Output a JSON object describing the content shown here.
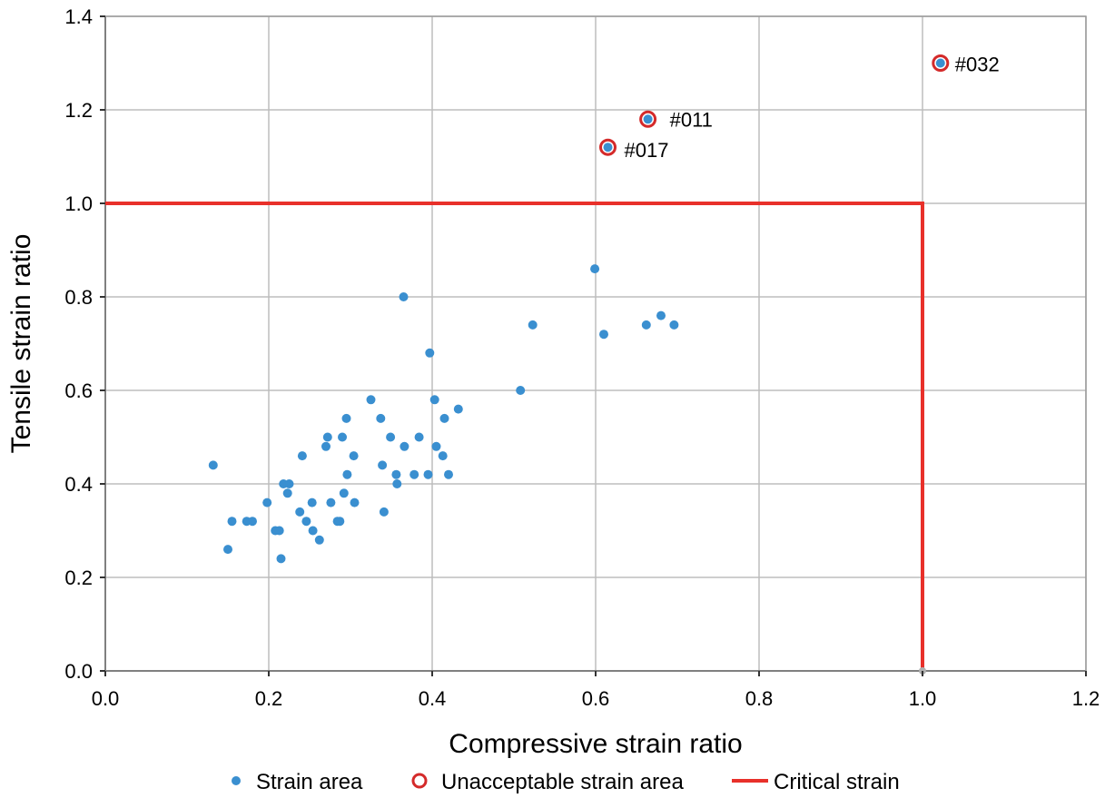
{
  "chart_data": {
    "type": "scatter",
    "xlabel": "Compressive strain ratio",
    "ylabel": "Tensile strain ratio",
    "xlim": [
      0.0,
      1.2
    ],
    "ylim": [
      0.0,
      1.4
    ],
    "xticks": [
      0.0,
      0.2,
      0.4,
      0.6,
      0.8,
      1.0,
      1.2
    ],
    "yticks": [
      0.0,
      0.2,
      0.4,
      0.6,
      0.8,
      1.0,
      1.2,
      1.4
    ],
    "xtick_labels": [
      "0.0",
      "0.2",
      "0.4",
      "0.6",
      "0.8",
      "1.0",
      "1.2"
    ],
    "ytick_labels": [
      "0.0",
      "0.2",
      "0.4",
      "0.6",
      "0.8",
      "1.0",
      "1.2",
      "1.4"
    ],
    "grid": true,
    "legend_position": "bottom",
    "colors": {
      "points": "#3a8fd0",
      "unacceptable": "#d42a2a",
      "critical": "#e8302a",
      "grid": "#bdbdbd"
    },
    "series": [
      {
        "name": "Strain area",
        "marker": "dot",
        "points": [
          [
            0.132,
            0.44
          ],
          [
            0.15,
            0.26
          ],
          [
            0.155,
            0.32
          ],
          [
            0.173,
            0.32
          ],
          [
            0.18,
            0.32
          ],
          [
            0.198,
            0.36
          ],
          [
            0.208,
            0.3
          ],
          [
            0.213,
            0.3
          ],
          [
            0.215,
            0.24
          ],
          [
            0.218,
            0.4
          ],
          [
            0.223,
            0.38
          ],
          [
            0.225,
            0.4
          ],
          [
            0.238,
            0.34
          ],
          [
            0.241,
            0.46
          ],
          [
            0.246,
            0.32
          ],
          [
            0.253,
            0.36
          ],
          [
            0.254,
            0.3
          ],
          [
            0.262,
            0.28
          ],
          [
            0.27,
            0.48
          ],
          [
            0.272,
            0.5
          ],
          [
            0.276,
            0.36
          ],
          [
            0.284,
            0.32
          ],
          [
            0.287,
            0.32
          ],
          [
            0.29,
            0.5
          ],
          [
            0.292,
            0.38
          ],
          [
            0.295,
            0.54
          ],
          [
            0.296,
            0.42
          ],
          [
            0.304,
            0.46
          ],
          [
            0.305,
            0.36
          ],
          [
            0.325,
            0.58
          ],
          [
            0.337,
            0.54
          ],
          [
            0.339,
            0.44
          ],
          [
            0.341,
            0.34
          ],
          [
            0.349,
            0.5
          ],
          [
            0.356,
            0.42
          ],
          [
            0.357,
            0.4
          ],
          [
            0.365,
            0.8
          ],
          [
            0.366,
            0.48
          ],
          [
            0.378,
            0.42
          ],
          [
            0.384,
            0.5
          ],
          [
            0.395,
            0.42
          ],
          [
            0.397,
            0.68
          ],
          [
            0.403,
            0.58
          ],
          [
            0.405,
            0.48
          ],
          [
            0.413,
            0.46
          ],
          [
            0.415,
            0.54
          ],
          [
            0.42,
            0.42
          ],
          [
            0.432,
            0.56
          ],
          [
            0.508,
            0.6
          ],
          [
            0.523,
            0.74
          ],
          [
            0.599,
            0.86
          ],
          [
            0.61,
            0.72
          ],
          [
            0.662,
            0.74
          ],
          [
            0.68,
            0.76
          ],
          [
            0.696,
            0.74
          ],
          [
            0.615,
            1.12
          ],
          [
            0.664,
            1.18
          ],
          [
            1.022,
            1.3
          ]
        ]
      },
      {
        "name": "Unacceptable strain area",
        "marker": "ring",
        "points": [
          [
            0.615,
            1.12
          ],
          [
            0.664,
            1.18
          ],
          [
            1.022,
            1.3
          ]
        ],
        "labels": [
          "#017",
          "#011",
          "#032"
        ]
      },
      {
        "name": "Critical strain",
        "marker": "line",
        "points": [
          [
            0.0,
            1.0
          ],
          [
            1.0,
            1.0
          ],
          [
            1.0,
            0.0
          ]
        ]
      }
    ]
  }
}
